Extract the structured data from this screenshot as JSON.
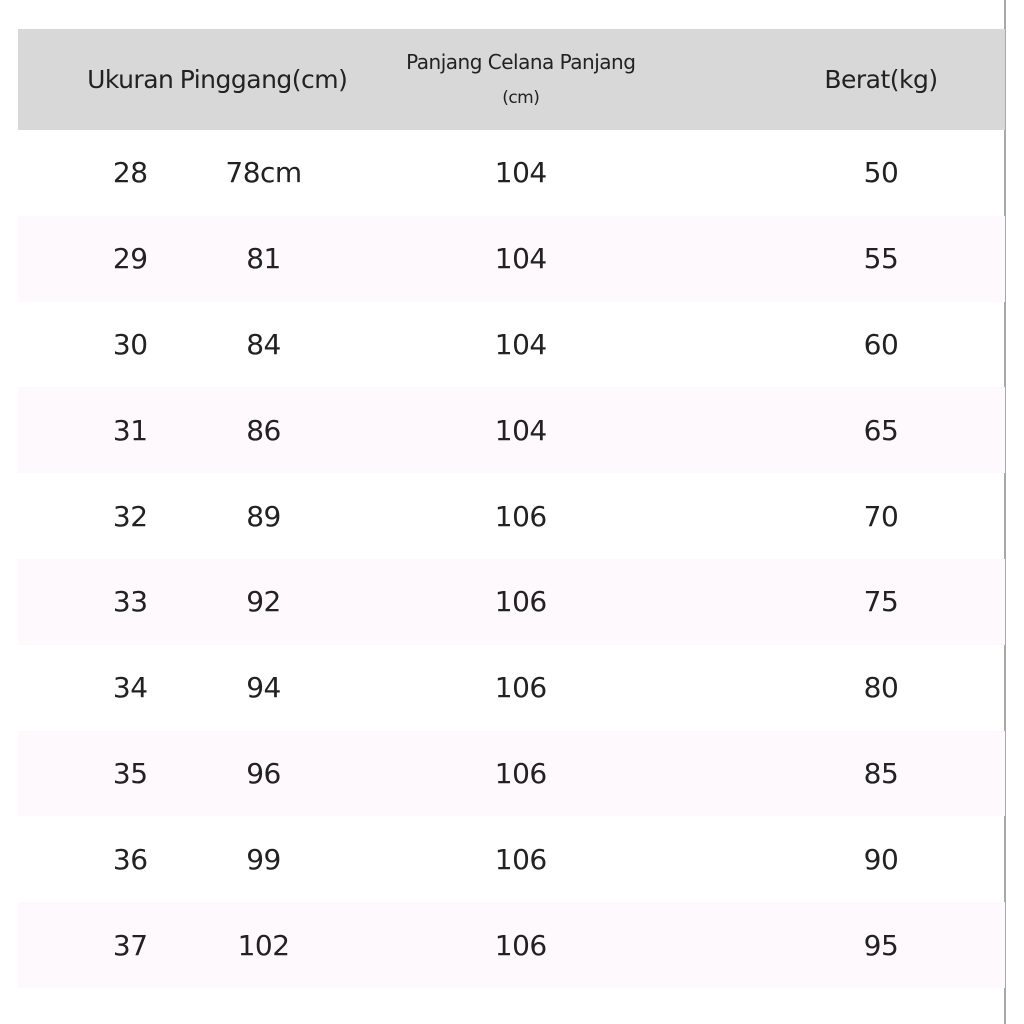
{
  "table": {
    "headers": [
      "Ukuran",
      "Pinggang(cm)",
      "Panjang Celana Panjang (cm)",
      "Berat(kg)"
    ],
    "header_lines": {
      "col3_line1": "Panjang Celana Panjang",
      "col3_line2": "(cm)"
    },
    "rows": [
      [
        "28",
        "78cm",
        "104",
        "50"
      ],
      [
        "29",
        "81",
        "104",
        "55"
      ],
      [
        "30",
        "84",
        "104",
        "60"
      ],
      [
        "31",
        "86",
        "104",
        "65"
      ],
      [
        "32",
        "89",
        "106",
        "70"
      ],
      [
        "33",
        "92",
        "106",
        "75"
      ],
      [
        "34",
        "94",
        "106",
        "80"
      ],
      [
        "35",
        "96",
        "106",
        "85"
      ],
      [
        "36",
        "99",
        "106",
        "90"
      ],
      [
        "37",
        "102",
        "106",
        "95"
      ]
    ]
  },
  "colors": {
    "header_bg": "#d8d8d8",
    "stripe_bg": "#fdf9fc"
  }
}
